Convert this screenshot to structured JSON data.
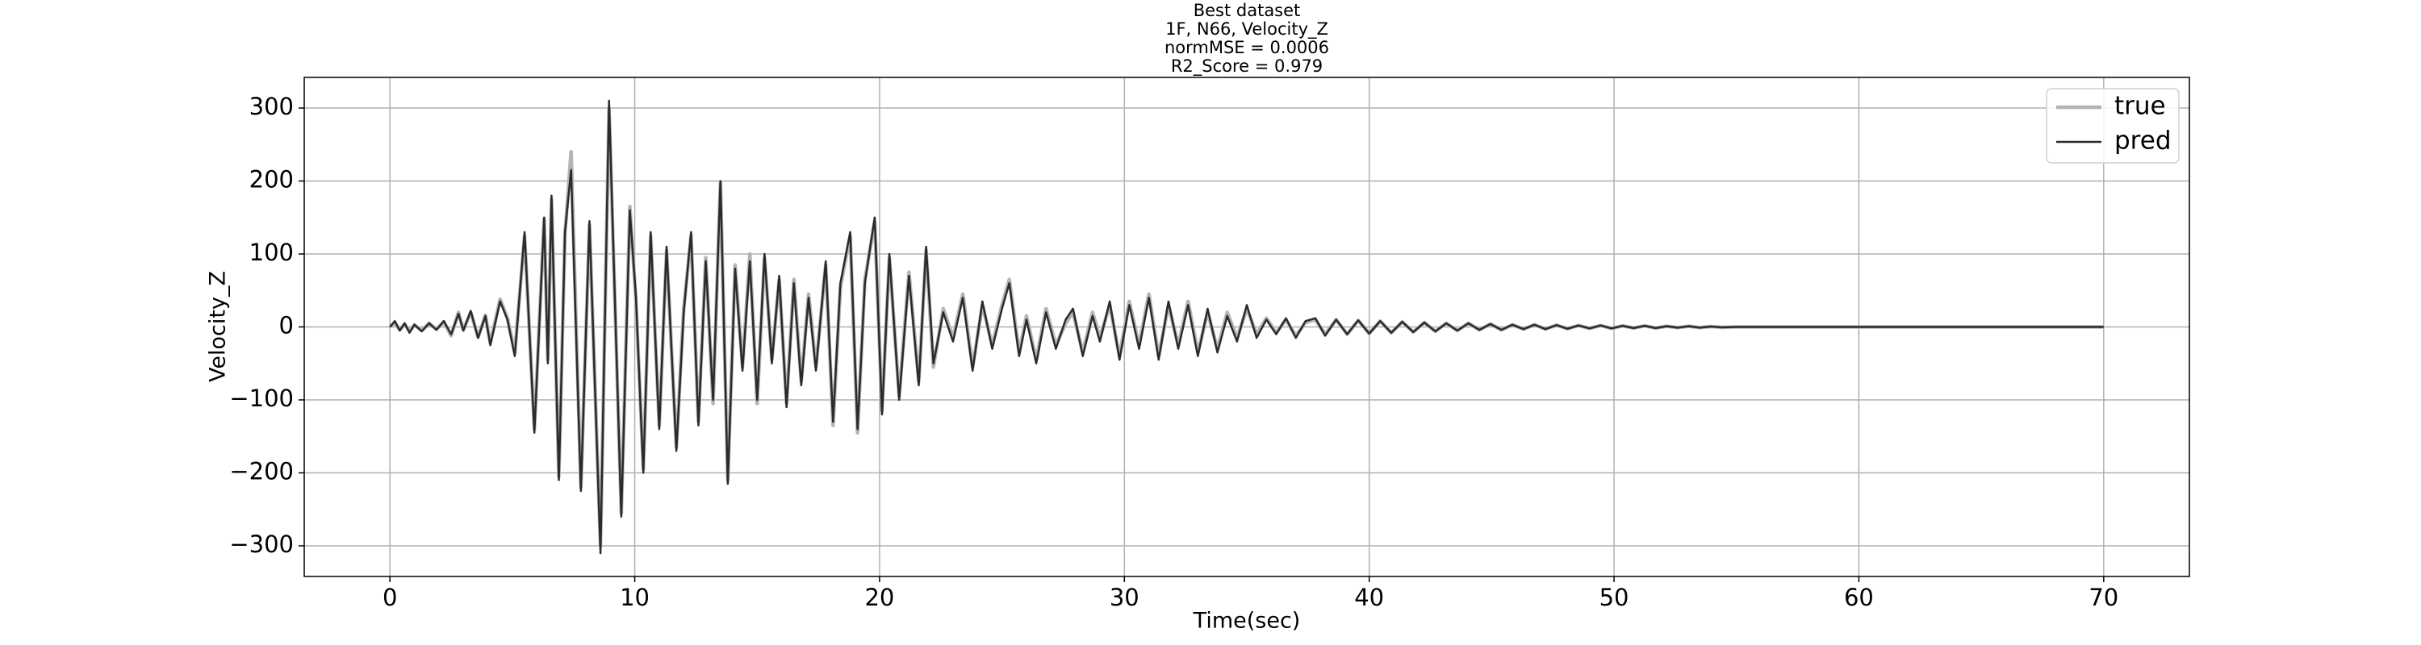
{
  "chart_data": {
    "type": "line",
    "title": [
      "Best dataset",
      "1F, N66, Velocity_Z",
      "normMSE = 0.0006",
      " R2_Score = 0.979"
    ],
    "xlabel": "Time(sec)",
    "ylabel": "Velocity_Z",
    "x": [
      0,
      0.2,
      0.4,
      0.6,
      0.8,
      1.0,
      1.3,
      1.6,
      1.9,
      2.2,
      2.5,
      2.8,
      3.0,
      3.3,
      3.6,
      3.9,
      4.1,
      4.5,
      4.8,
      5.1,
      5.5,
      5.9,
      6.3,
      6.45,
      6.6,
      6.9,
      7.15,
      7.4,
      7.8,
      8.15,
      8.6,
      8.95,
      9.45,
      9.8,
      10.05,
      10.35,
      10.65,
      11.0,
      11.3,
      11.7,
      12.0,
      12.3,
      12.6,
      12.9,
      13.2,
      13.5,
      13.8,
      14.1,
      14.4,
      14.7,
      15.0,
      15.3,
      15.6,
      15.9,
      16.2,
      16.5,
      16.8,
      17.1,
      17.4,
      17.8,
      18.1,
      18.4,
      18.8,
      19.1,
      19.4,
      19.8,
      20.1,
      20.4,
      20.8,
      21.2,
      21.6,
      21.9,
      22.2,
      22.6,
      23.0,
      23.4,
      23.8,
      24.2,
      24.6,
      25.0,
      25.3,
      25.7,
      26.0,
      26.4,
      26.8,
      27.2,
      27.6,
      27.9,
      28.3,
      28.7,
      29.0,
      29.4,
      29.8,
      30.2,
      30.6,
      31.0,
      31.4,
      31.8,
      32.2,
      32.6,
      33.0,
      33.4,
      33.8,
      34.2,
      34.6,
      35.0,
      35.4,
      35.8,
      36.2,
      36.6,
      37.0,
      37.4,
      37.8,
      38.2,
      38.65,
      39.1,
      39.55,
      40.0,
      40.45,
      40.9,
      41.35,
      41.8,
      42.25,
      42.7,
      43.15,
      43.6,
      44.05,
      44.5,
      44.95,
      45.4,
      45.85,
      46.3,
      46.75,
      47.2,
      47.65,
      48.1,
      48.55,
      49.0,
      49.45,
      49.9,
      50.35,
      50.8,
      51.25,
      51.7,
      52.15,
      52.6,
      53.05,
      53.5,
      53.95,
      54.4,
      55.0,
      70.0
    ],
    "series": [
      {
        "name": "true",
        "color": "#b4b4b4",
        "values": [
          0,
          6,
          -4,
          4,
          -6,
          3,
          -5,
          5,
          -3,
          7,
          -12,
          20,
          -4,
          20,
          -14,
          16,
          -22,
          38,
          12,
          -35,
          125,
          -140,
          148,
          -45,
          175,
          -205,
          128,
          240,
          -220,
          140,
          -300,
          300,
          -255,
          165,
          35,
          -195,
          125,
          -135,
          105,
          -165,
          25,
          125,
          -130,
          95,
          -105,
          198,
          -210,
          85,
          -55,
          100,
          -105,
          95,
          -45,
          65,
          -105,
          65,
          -75,
          45,
          -55,
          85,
          -135,
          55,
          125,
          -145,
          65,
          145,
          -115,
          95,
          -95,
          75,
          -75,
          105,
          -55,
          25,
          -15,
          45,
          -55,
          30,
          -25,
          30,
          65,
          -35,
          15,
          -45,
          25,
          -25,
          5,
          20,
          -35,
          20,
          -15,
          30,
          -40,
          35,
          -25,
          45,
          -40,
          30,
          -25,
          35,
          -35,
          20,
          -30,
          20,
          -15,
          25,
          -10,
          12,
          -8,
          10,
          -12,
          6,
          10,
          -10,
          10,
          -10,
          9,
          -9,
          8,
          -8,
          7,
          -7,
          6,
          -6,
          5,
          -5,
          5,
          -4,
          4,
          -4,
          3,
          -3,
          3,
          -3,
          2.5,
          -2.5,
          2,
          -2,
          2,
          -2,
          1.5,
          -1.5,
          1.5,
          -1.5,
          1,
          -1,
          1,
          -1,
          0.5,
          -0.5,
          0,
          0
        ]
      },
      {
        "name": "pred",
        "color": "#2b2b2b",
        "values": [
          0,
          8,
          -5,
          5,
          -8,
          3,
          -6,
          5,
          -4,
          8,
          -10,
          18,
          -5,
          22,
          -15,
          15,
          -25,
          35,
          10,
          -40,
          130,
          -145,
          150,
          -50,
          180,
          -210,
          130,
          215,
          -225,
          145,
          -310,
          310,
          -260,
          160,
          40,
          -200,
          130,
          -140,
          110,
          -170,
          20,
          130,
          -135,
          90,
          -100,
          200,
          -215,
          80,
          -60,
          90,
          -100,
          100,
          -50,
          70,
          -110,
          60,
          -80,
          40,
          -60,
          90,
          -130,
          60,
          130,
          -140,
          60,
          150,
          -120,
          100,
          -100,
          70,
          -80,
          110,
          -50,
          20,
          -20,
          40,
          -60,
          35,
          -30,
          25,
          60,
          -40,
          10,
          -50,
          20,
          -30,
          10,
          25,
          -40,
          15,
          -20,
          35,
          -45,
          30,
          -30,
          40,
          -45,
          35,
          -30,
          30,
          -40,
          25,
          -35,
          15,
          -20,
          30,
          -15,
          10,
          -10,
          12,
          -15,
          8,
          12,
          -12,
          10,
          -10,
          9,
          -9,
          8,
          -8,
          7,
          -7,
          6,
          -6,
          5,
          -5,
          5,
          -4,
          4,
          -4,
          3,
          -3,
          3,
          -3,
          2.5,
          -2.5,
          2,
          -2,
          2,
          -2,
          1.5,
          -1.5,
          1.5,
          -1.5,
          1,
          -1,
          1,
          -1,
          0.5,
          -0.5,
          0,
          0
        ]
      }
    ],
    "xlim": [
      -3.5,
      73.5
    ],
    "ylim": [
      -342,
      342
    ],
    "xticks": [
      0,
      10,
      20,
      30,
      40,
      50,
      60,
      70
    ],
    "yticks": [
      {
        "value": -300,
        "label": "−300"
      },
      {
        "value": -200,
        "label": "−200"
      },
      {
        "value": -100,
        "label": "−100"
      },
      0,
      100,
      200,
      300
    ],
    "grid": true,
    "legend": "upper right"
  }
}
